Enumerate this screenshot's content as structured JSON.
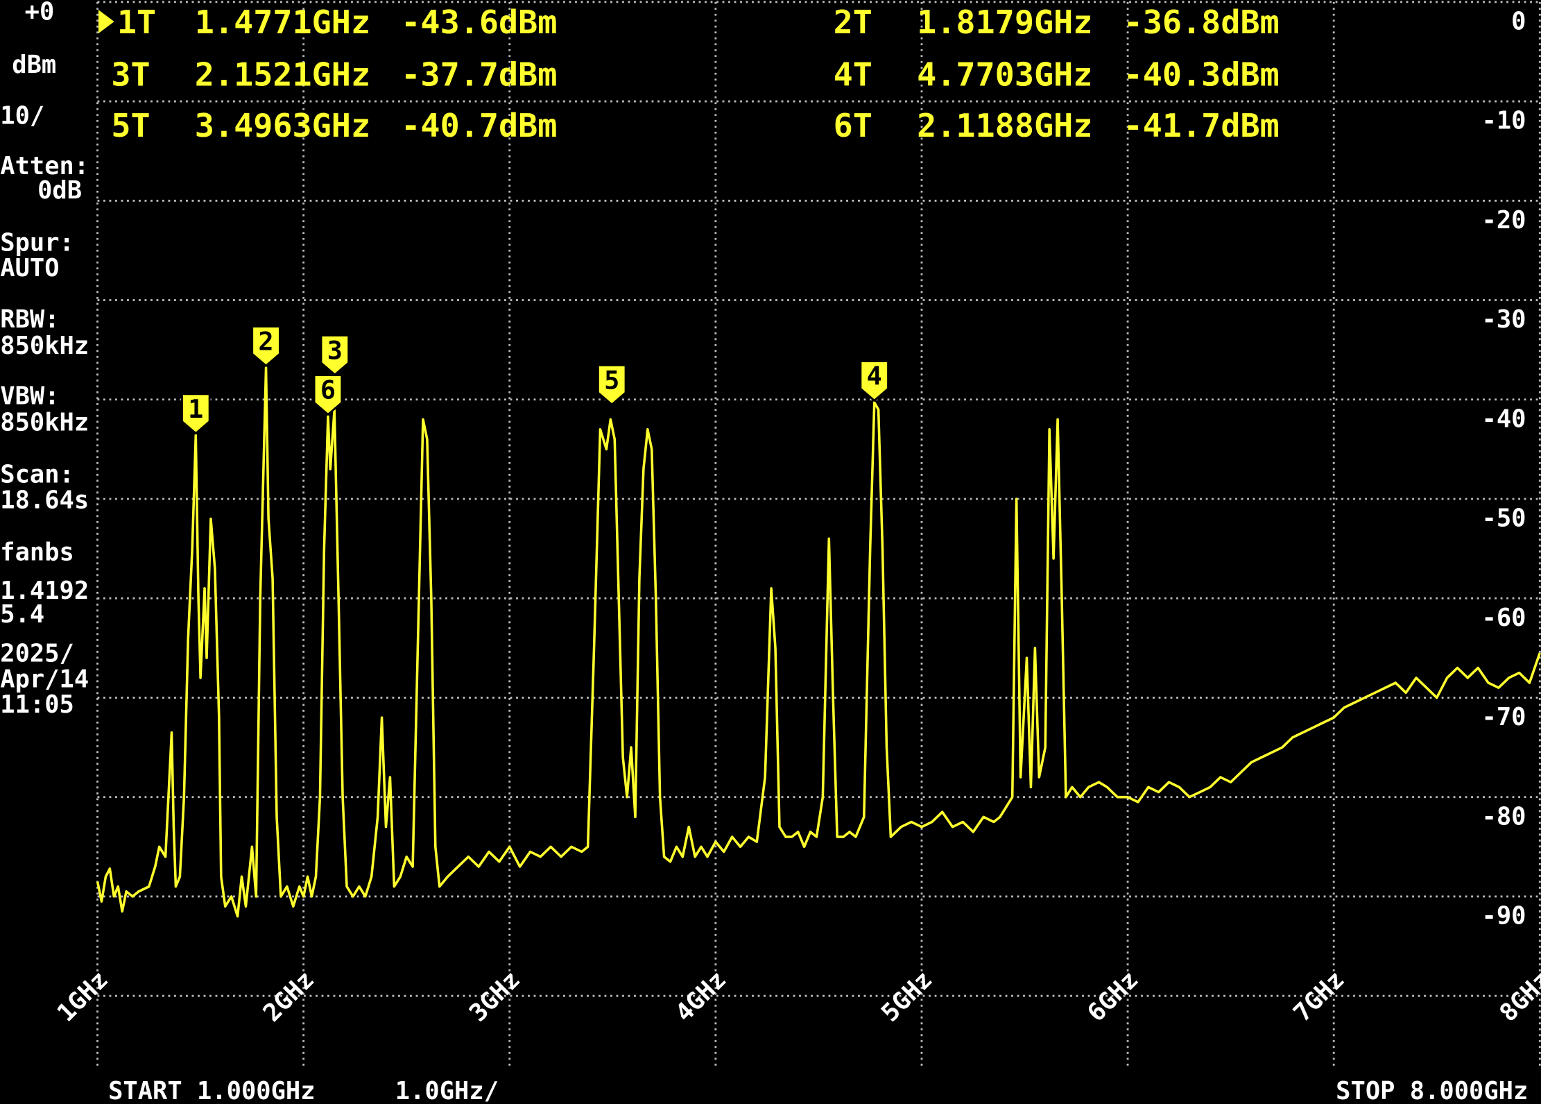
{
  "chart_data": {
    "type": "line",
    "color": "#ffff2e",
    "xlim": [
      1,
      8
    ],
    "ylim": [
      -100,
      0
    ],
    "grid": true,
    "xticks": [
      {
        "value": 1,
        "label": "1GHz"
      },
      {
        "value": 2,
        "label": "2GHz"
      },
      {
        "value": 3,
        "label": "3GHz"
      },
      {
        "value": 4,
        "label": "4GHz"
      },
      {
        "value": 5,
        "label": "5GHz"
      },
      {
        "value": 6,
        "label": "6GHz"
      },
      {
        "value": 7,
        "label": "7GHz"
      },
      {
        "value": 8,
        "label": "8GHz"
      }
    ],
    "yticks": [
      0,
      -10,
      -20,
      -30,
      -40,
      -50,
      -60,
      -70,
      -80,
      -90
    ],
    "x": [
      1.0,
      1.02,
      1.04,
      1.06,
      1.08,
      1.1,
      1.12,
      1.14,
      1.17,
      1.2,
      1.25,
      1.28,
      1.3,
      1.33,
      1.36,
      1.37,
      1.38,
      1.4,
      1.42,
      1.44,
      1.46,
      1.4771,
      1.49,
      1.5,
      1.52,
      1.53,
      1.55,
      1.57,
      1.59,
      1.6,
      1.62,
      1.65,
      1.68,
      1.7,
      1.72,
      1.75,
      1.77,
      1.79,
      1.8179,
      1.83,
      1.85,
      1.87,
      1.89,
      1.92,
      1.95,
      1.98,
      2.0,
      2.02,
      2.04,
      2.06,
      2.08,
      2.1,
      2.1188,
      2.13,
      2.15,
      2.17,
      2.19,
      2.21,
      2.24,
      2.27,
      2.3,
      2.33,
      2.36,
      2.38,
      2.4,
      2.42,
      2.44,
      2.47,
      2.5,
      2.53,
      2.56,
      2.58,
      2.6,
      2.62,
      2.64,
      2.66,
      2.7,
      2.75,
      2.8,
      2.85,
      2.9,
      2.95,
      3.0,
      3.05,
      3.1,
      3.15,
      3.2,
      3.25,
      3.3,
      3.35,
      3.38,
      3.41,
      3.44,
      3.47,
      3.49,
      3.51,
      3.53,
      3.55,
      3.57,
      3.59,
      3.61,
      3.63,
      3.65,
      3.67,
      3.69,
      3.71,
      3.73,
      3.75,
      3.78,
      3.81,
      3.84,
      3.87,
      3.9,
      3.93,
      3.96,
      4.0,
      4.04,
      4.08,
      4.12,
      4.16,
      4.2,
      4.24,
      4.27,
      4.29,
      4.31,
      4.34,
      4.37,
      4.4,
      4.43,
      4.46,
      4.49,
      4.52,
      4.55,
      4.57,
      4.59,
      4.62,
      4.65,
      4.68,
      4.72,
      4.75,
      4.7703,
      4.79,
      4.81,
      4.83,
      4.85,
      4.9,
      4.95,
      5.0,
      5.05,
      5.1,
      5.15,
      5.2,
      5.25,
      5.3,
      5.35,
      5.38,
      5.41,
      5.44,
      5.46,
      5.48,
      5.51,
      5.53,
      5.55,
      5.57,
      5.6,
      5.62,
      5.64,
      5.66,
      5.68,
      5.7,
      5.73,
      5.77,
      5.81,
      5.86,
      5.9,
      5.95,
      6.0,
      6.05,
      6.1,
      6.15,
      6.2,
      6.25,
      6.3,
      6.35,
      6.4,
      6.45,
      6.5,
      6.55,
      6.6,
      6.65,
      6.7,
      6.75,
      6.8,
      6.85,
      6.9,
      6.95,
      7.0,
      7.05,
      7.1,
      7.15,
      7.2,
      7.25,
      7.3,
      7.35,
      7.4,
      7.45,
      7.5,
      7.55,
      7.6,
      7.65,
      7.7,
      7.75,
      7.8,
      7.85,
      7.9,
      7.95,
      8.0
    ],
    "values": [
      -88.5,
      -90.5,
      -88,
      -87.2,
      -90,
      -89,
      -91.5,
      -89.5,
      -90,
      -89.5,
      -89,
      -87,
      -85,
      -86,
      -73.5,
      -83,
      -89,
      -88,
      -80,
      -64,
      -55,
      -43.6,
      -60,
      -68,
      -59,
      -66,
      -52,
      -57,
      -72,
      -88,
      -91,
      -90,
      -92,
      -88,
      -91,
      -85,
      -90,
      -60,
      -36.8,
      -52,
      -58,
      -82,
      -90,
      -89,
      -91,
      -89,
      -90,
      -88,
      -90,
      -88,
      -80,
      -55,
      -41.7,
      -47,
      -41,
      -60,
      -80,
      -89,
      -90,
      -89,
      -90,
      -88,
      -82,
      -72,
      -83,
      -78,
      -89,
      -88,
      -86,
      -87,
      -60,
      -42,
      -44,
      -60,
      -85,
      -89,
      -88,
      -87,
      -86,
      -87,
      -85.5,
      -86.5,
      -85,
      -87,
      -85.5,
      -86,
      -85,
      -86,
      -85,
      -85.5,
      -85,
      -65,
      -43,
      -45,
      -42,
      -44,
      -60,
      -76,
      -80,
      -75,
      -82,
      -58,
      -47,
      -43,
      -45,
      -60,
      -80,
      -86,
      -86.5,
      -85,
      -86,
      -83,
      -86,
      -85,
      -86,
      -84.5,
      -85.5,
      -84,
      -85,
      -84,
      -84.5,
      -78,
      -59,
      -65,
      -83,
      -84,
      -84,
      -83.5,
      -85,
      -83.5,
      -84,
      -80,
      -54,
      -70,
      -84,
      -84,
      -83.5,
      -84,
      -82,
      -55,
      -40.3,
      -41,
      -55,
      -75,
      -84,
      -83,
      -82.5,
      -83,
      -82.5,
      -81.5,
      -83,
      -82.5,
      -83.5,
      -82,
      -82.5,
      -82,
      -81,
      -80,
      -50,
      -78,
      -66,
      -79,
      -65,
      -78,
      -75,
      -43,
      -56,
      -42,
      -60,
      -80,
      -79,
      -80,
      -79,
      -78.5,
      -79,
      -80,
      -80,
      -80.5,
      -79,
      -79.5,
      -78.5,
      -79,
      -80,
      -79.5,
      -79,
      -78,
      -78.5,
      -77.5,
      -76.5,
      -76,
      -75.5,
      -75,
      -74,
      -73.5,
      -73,
      -72.5,
      -72,
      -71,
      -70.5,
      -70,
      -69.5,
      -69,
      -68.5,
      -69.5,
      -68,
      -69,
      -70,
      -68,
      -67,
      -68,
      -67,
      -68.5,
      -69,
      -68,
      -67.5,
      -68.5,
      -65.5
    ],
    "markers": [
      {
        "label": "1T",
        "flag": "1",
        "freq": {
          "value": 1.4771,
          "label": "1.4771GHz"
        },
        "level": {
          "value": -43.6,
          "label": "-43.6dBm"
        }
      },
      {
        "label": "2T",
        "flag": "2",
        "freq": {
          "value": 1.8179,
          "label": "1.8179GHz"
        },
        "level": {
          "value": -36.8,
          "label": "-36.8dBm"
        }
      },
      {
        "label": "3T",
        "flag": "3",
        "freq": {
          "value": 2.1521,
          "label": "2.1521GHz"
        },
        "level": {
          "value": -37.7,
          "label": "-37.7dBm"
        }
      },
      {
        "label": "4T",
        "flag": "4",
        "freq": {
          "value": 4.7703,
          "label": "4.7703GHz"
        },
        "level": {
          "value": -40.3,
          "label": "-40.3dBm"
        }
      },
      {
        "label": "5T",
        "flag": "5",
        "freq": {
          "value": 3.4963,
          "label": "3.4963GHz"
        },
        "level": {
          "value": -40.7,
          "label": "-40.7dBm"
        }
      },
      {
        "label": "6T",
        "flag": "6",
        "freq": {
          "value": 2.1188,
          "label": "2.1188GHz"
        },
        "level": {
          "value": -41.7,
          "label": "-41.7dBm"
        }
      }
    ],
    "side_panel": [
      "+0",
      "dBm",
      "10/",
      "Atten:",
      "0dB",
      "Spur:",
      "AUTO",
      "RBW:",
      "850kHz",
      "VBW:",
      "850kHz",
      "Scan:",
      "18.64s",
      "fanbs",
      "1.4192",
      "5.4",
      "2025/",
      "Apr/14",
      "11:05"
    ],
    "start_label": "START 1.000GHz",
    "span_label": "1.0GHz/",
    "stop_label": "STOP 8.000GHz"
  }
}
